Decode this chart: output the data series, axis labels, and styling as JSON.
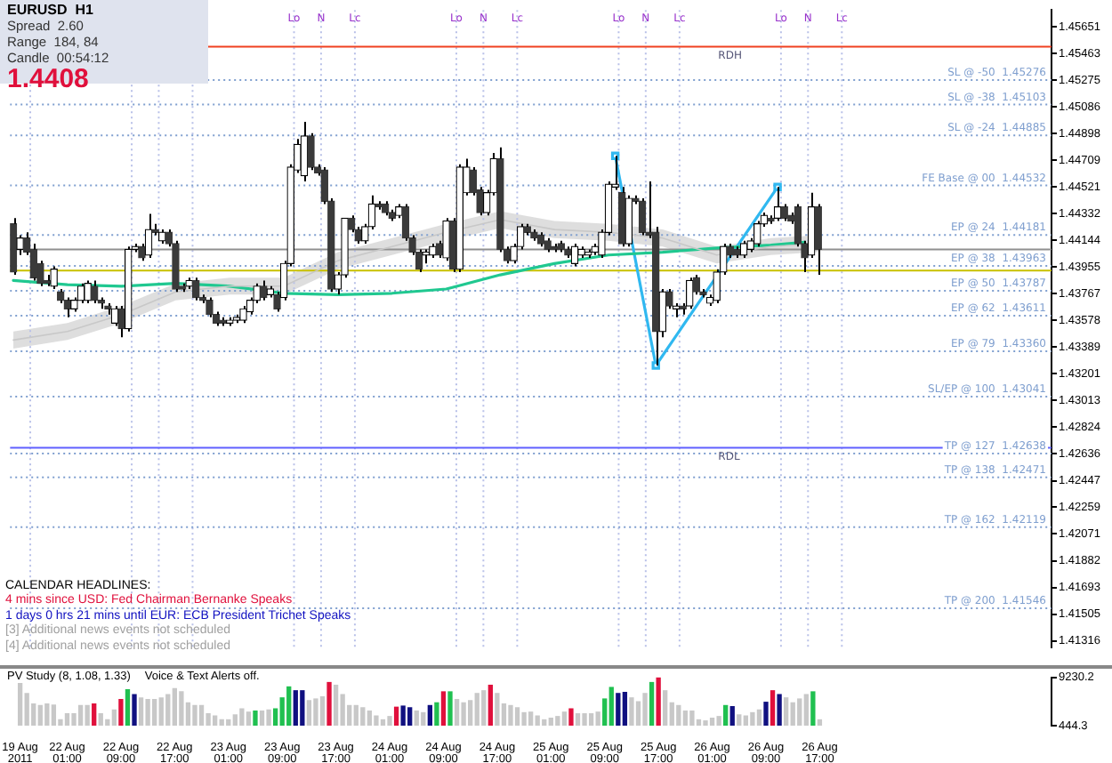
{
  "chart_data": [
    {
      "type": "candlestick",
      "tick_labels": "y",
      "legend": false,
      "grid": false,
      "categories": [
        null,
        null,
        null,
        null,
        null,
        null,
        null,
        null,
        null,
        null,
        null,
        null,
        null,
        null,
        null,
        null,
        null,
        null,
        null,
        null,
        null,
        null,
        null,
        null,
        null,
        null,
        null,
        null,
        null,
        null,
        null,
        null,
        null,
        null,
        null,
        null,
        null,
        null,
        null,
        null,
        null,
        null,
        null,
        null,
        null,
        null,
        null,
        null,
        null,
        null,
        null,
        null,
        null,
        null,
        null,
        null,
        null,
        null,
        null,
        null,
        null,
        null,
        null,
        null,
        null,
        null,
        null,
        null,
        null,
        null,
        null,
        null,
        null,
        null,
        null,
        null,
        null,
        null,
        null,
        null,
        null,
        null,
        null,
        null,
        null,
        null,
        null,
        null,
        null,
        null,
        null,
        null,
        null,
        null,
        null,
        null,
        null,
        null,
        null,
        null,
        null,
        null,
        null,
        null,
        null,
        null,
        null,
        null,
        null,
        null,
        null,
        null,
        null,
        null,
        null,
        null,
        null,
        null,
        null,
        null,
        null,
        null,
        null,
        null,
        null,
        null,
        null,
        null,
        null,
        null,
        null,
        null,
        null,
        null,
        null,
        null,
        null,
        null,
        null,
        null,
        null,
        null,
        null,
        null,
        null,
        null,
        null,
        null,
        null,
        null,
        null,
        null,
        null,
        null
      ],
      "ohlc": [
        [
          1.4426,
          1.443,
          1.439,
          1.4392
        ],
        [
          1.4408,
          1.4418,
          1.4404,
          1.4416
        ],
        [
          1.4416,
          1.442,
          1.4404,
          1.4406
        ],
        [
          1.4408,
          1.4412,
          1.4386,
          1.4388
        ],
        [
          1.4398,
          1.44,
          1.4382,
          1.4384
        ],
        [
          1.4386,
          1.439,
          1.4382,
          1.4384
        ],
        [
          1.4382,
          1.4396,
          1.438,
          1.4394
        ],
        [
          1.4378,
          1.438,
          1.437,
          1.4372
        ],
        [
          1.4372,
          1.4374,
          1.436,
          1.4366
        ],
        [
          1.4366,
          1.4374,
          1.4364,
          1.4372
        ],
        [
          1.4372,
          1.4384,
          1.437,
          1.4382
        ],
        [
          1.4372,
          1.4386,
          1.437,
          1.4384
        ],
        [
          1.4382,
          1.4386,
          1.437,
          1.4372
        ],
        [
          1.4372,
          1.4374,
          1.4366,
          1.437
        ],
        [
          1.4368,
          1.437,
          1.4362,
          1.4366
        ],
        [
          1.4356,
          1.4368,
          1.4354,
          1.4366
        ],
        [
          1.4366,
          1.4368,
          1.4346,
          1.4352
        ],
        [
          1.4352,
          1.441,
          1.435,
          1.4408
        ],
        [
          1.4408,
          1.4412,
          1.4406,
          1.441
        ],
        [
          1.441,
          1.4412,
          1.44,
          1.4402
        ],
        [
          1.4404,
          1.4433,
          1.4402,
          1.4422
        ],
        [
          1.4422,
          1.4426,
          1.4418,
          1.442
        ],
        [
          1.4414,
          1.4422,
          1.4412,
          1.442
        ],
        [
          1.442,
          1.4422,
          1.441,
          1.4412
        ],
        [
          1.4412,
          1.4414,
          1.4378,
          1.438
        ],
        [
          1.4382,
          1.4384,
          1.4378,
          1.438
        ],
        [
          1.4382,
          1.4388,
          1.438,
          1.4386
        ],
        [
          1.4386,
          1.4388,
          1.4372,
          1.4374
        ],
        [
          1.4374,
          1.4376,
          1.437,
          1.4372
        ],
        [
          1.4372,
          1.4374,
          1.436,
          1.4362
        ],
        [
          1.4362,
          1.4364,
          1.4354,
          1.4356
        ],
        [
          1.4358,
          1.436,
          1.4354,
          1.4356
        ],
        [
          1.4356,
          1.436,
          1.4354,
          1.4358
        ],
        [
          1.4358,
          1.4362,
          1.4356,
          1.436
        ],
        [
          1.4358,
          1.4368,
          1.4356,
          1.4366
        ],
        [
          1.4364,
          1.4374,
          1.4362,
          1.4372
        ],
        [
          1.4372,
          1.4384,
          1.437,
          1.4382
        ],
        [
          1.4382,
          1.4386,
          1.4372,
          1.4374
        ],
        [
          1.4376,
          1.4382,
          1.4374,
          1.438
        ],
        [
          1.4376,
          1.4378,
          1.4364,
          1.4366
        ],
        [
          1.4374,
          1.44,
          1.4372,
          1.4398
        ],
        [
          1.4398,
          1.4468,
          1.4396,
          1.4466
        ],
        [
          1.4464,
          1.4486,
          1.4462,
          1.4482
        ],
        [
          1.446,
          1.4498,
          1.4456,
          1.4488
        ],
        [
          1.4488,
          1.449,
          1.4464,
          1.4466
        ],
        [
          1.4466,
          1.4468,
          1.446,
          1.4462
        ],
        [
          1.4464,
          1.4466,
          1.444,
          1.4442
        ],
        [
          1.4442,
          1.4444,
          1.4378,
          1.438
        ],
        [
          1.438,
          1.4392,
          1.4376,
          1.439
        ],
        [
          1.439,
          1.443,
          1.4388,
          1.443
        ],
        [
          1.443,
          1.4432,
          1.442,
          1.4422
        ],
        [
          1.4422,
          1.4424,
          1.4412,
          1.4414
        ],
        [
          1.4414,
          1.4426,
          1.4412,
          1.4424
        ],
        [
          1.4424,
          1.4446,
          1.4422,
          1.444
        ],
        [
          1.444,
          1.4442,
          1.4436,
          1.4438
        ],
        [
          1.444,
          1.4442,
          1.4432,
          1.4434
        ],
        [
          1.4434,
          1.4436,
          1.4428,
          1.443
        ],
        [
          1.4432,
          1.444,
          1.443,
          1.4438
        ],
        [
          1.4438,
          1.444,
          1.4414,
          1.4416
        ],
        [
          1.4416,
          1.4418,
          1.4404,
          1.4406
        ],
        [
          1.4406,
          1.4408,
          1.4392,
          1.4394
        ],
        [
          1.4404,
          1.4408,
          1.4398,
          1.4406
        ],
        [
          1.4404,
          1.4412,
          1.4402,
          1.441
        ],
        [
          1.4412,
          1.4414,
          1.4402,
          1.4404
        ],
        [
          1.4402,
          1.443,
          1.44,
          1.4428
        ],
        [
          1.4428,
          1.443,
          1.4392,
          1.4394
        ],
        [
          1.4394,
          1.4468,
          1.4392,
          1.4466
        ],
        [
          1.4448,
          1.4472,
          1.4446,
          1.4466
        ],
        [
          1.4464,
          1.4466,
          1.4446,
          1.4448
        ],
        [
          1.445,
          1.4452,
          1.4432,
          1.4434
        ],
        [
          1.4434,
          1.445,
          1.4432,
          1.4448
        ],
        [
          1.4448,
          1.4476,
          1.4446,
          1.4472
        ],
        [
          1.4472,
          1.448,
          1.4406,
          1.4408
        ],
        [
          1.4408,
          1.441,
          1.4398,
          1.44
        ],
        [
          1.44,
          1.4412,
          1.4398,
          1.441
        ],
        [
          1.441,
          1.4426,
          1.4408,
          1.4424
        ],
        [
          1.4424,
          1.4426,
          1.4418,
          1.442
        ],
        [
          1.442,
          1.4422,
          1.4414,
          1.4416
        ],
        [
          1.4418,
          1.442,
          1.441,
          1.4412
        ],
        [
          1.4414,
          1.4416,
          1.4406,
          1.4408
        ],
        [
          1.441,
          1.4412,
          1.4406,
          1.4408
        ],
        [
          1.4412,
          1.4414,
          1.4406,
          1.4408
        ],
        [
          1.4408,
          1.441,
          1.4402,
          1.4404
        ],
        [
          1.4398,
          1.4412,
          1.4396,
          1.441
        ],
        [
          1.4404,
          1.441,
          1.4402,
          1.4408
        ],
        [
          1.4404,
          1.4408,
          1.4402,
          1.4406
        ],
        [
          1.4406,
          1.4412,
          1.4404,
          1.441
        ],
        [
          1.4404,
          1.4422,
          1.4402,
          1.442
        ],
        [
          1.442,
          1.4456,
          1.4418,
          1.4454
        ],
        [
          1.4452,
          1.4474,
          1.445,
          1.4454
        ],
        [
          1.4448,
          1.4452,
          1.441,
          1.4412
        ],
        [
          1.4412,
          1.4446,
          1.441,
          1.4444
        ],
        [
          1.4444,
          1.4446,
          1.444,
          1.4442
        ],
        [
          1.4442,
          1.4444,
          1.4418,
          1.442
        ],
        [
          1.442,
          1.4456,
          1.4416,
          1.4418
        ],
        [
          1.442,
          1.4424,
          1.4326,
          1.435
        ],
        [
          1.435,
          1.438,
          1.4346,
          1.4378
        ],
        [
          1.4378,
          1.438,
          1.4366,
          1.4368
        ],
        [
          1.4366,
          1.437,
          1.436,
          1.4368
        ],
        [
          1.4368,
          1.437,
          1.4362,
          1.4366
        ],
        [
          1.4368,
          1.4388,
          1.4366,
          1.4386
        ],
        [
          1.4388,
          1.439,
          1.4376,
          1.4378
        ],
        [
          1.4378,
          1.438,
          1.4374,
          1.4376
        ],
        [
          1.437,
          1.4376,
          1.4368,
          1.4374
        ],
        [
          1.4372,
          1.4394,
          1.437,
          1.4392
        ],
        [
          1.4392,
          1.4412,
          1.439,
          1.441
        ],
        [
          1.441,
          1.4412,
          1.4402,
          1.4404
        ],
        [
          1.4408,
          1.441,
          1.4402,
          1.4404
        ],
        [
          1.4404,
          1.4414,
          1.4402,
          1.4412
        ],
        [
          1.4408,
          1.4416,
          1.4406,
          1.4414
        ],
        [
          1.4412,
          1.4428,
          1.441,
          1.4426
        ],
        [
          1.4426,
          1.4434,
          1.4424,
          1.4432
        ],
        [
          1.443,
          1.4432,
          1.4426,
          1.4428
        ],
        [
          1.443,
          1.4452,
          1.4428,
          1.4438
        ],
        [
          1.4438,
          1.444,
          1.4428,
          1.443
        ],
        [
          1.4432,
          1.4434,
          1.4426,
          1.4428
        ],
        [
          1.4438,
          1.444,
          1.441,
          1.4412
        ],
        [
          1.4412,
          1.4414,
          1.4392,
          1.4402
        ],
        [
          1.4404,
          1.4448,
          1.4402,
          1.4438
        ],
        [
          1.4438,
          1.444,
          1.439,
          1.4408
        ],
        null,
        null,
        null,
        null,
        null,
        null,
        null,
        null,
        null,
        null,
        null,
        null,
        null,
        null,
        null,
        null,
        null,
        null,
        null,
        null,
        null,
        null,
        null,
        null,
        null,
        null,
        null,
        null,
        null,
        null,
        null,
        null,
        null,
        null
      ],
      "series": [
        {
          "type": "line",
          "color": "#c8c8c8",
          "values": [
            1.4344,
            null,
            null,
            null,
            null,
            null,
            null,
            null,
            1.435,
            null,
            null,
            null,
            null,
            null,
            null,
            null,
            1.4362,
            null,
            null,
            null,
            null,
            null,
            null,
            null,
            1.4378,
            null,
            null,
            null,
            null,
            null,
            null,
            null,
            1.4382,
            null,
            null,
            null,
            null,
            null,
            null,
            null,
            1.4382,
            null,
            null,
            null,
            null,
            null,
            null,
            null,
            1.44,
            null,
            null,
            null,
            null,
            null,
            null,
            null,
            1.441,
            null,
            null,
            null,
            null,
            null,
            null,
            null,
            1.442,
            null,
            null,
            null,
            null,
            null,
            null,
            null,
            1.4429,
            null,
            null,
            null,
            null,
            null,
            null,
            null,
            1.4422,
            null,
            null,
            null,
            null,
            null,
            null,
            null,
            1.442,
            null,
            null,
            null,
            null,
            null,
            null,
            null,
            1.4416,
            null,
            null,
            null,
            null,
            null,
            null,
            null,
            1.4404,
            null,
            null,
            null,
            null,
            null,
            null,
            null,
            1.441,
            null,
            null,
            null,
            null,
            null,
            null,
            1.4412,
            null,
            null,
            null,
            null,
            null,
            null,
            null,
            null,
            null,
            null,
            null,
            null,
            null,
            null,
            null,
            null,
            null,
            null,
            null,
            null,
            null,
            null,
            null,
            null,
            null,
            null,
            null,
            null,
            null,
            null,
            null,
            null,
            null,
            null
          ],
          "lower": [
            1.4338,
            null,
            null,
            null,
            null,
            null,
            null,
            null,
            1.4344,
            null,
            null,
            null,
            null,
            null,
            null,
            null,
            1.4356,
            null,
            null,
            null,
            null,
            null,
            null,
            null,
            1.4372,
            null,
            null,
            null,
            null,
            null,
            null,
            null,
            1.4376,
            null,
            null,
            null,
            null,
            null,
            null,
            null,
            1.4376,
            null,
            null,
            null,
            null,
            null,
            null,
            null,
            1.4394,
            null,
            null,
            null,
            null,
            null,
            null,
            null,
            1.4404,
            null,
            null,
            null,
            null,
            null,
            null,
            null,
            1.4414,
            null,
            null,
            null,
            null,
            null,
            null,
            null,
            1.4423,
            null,
            null,
            null,
            null,
            null,
            null,
            null,
            1.4416,
            null,
            null,
            null,
            null,
            null,
            null,
            null,
            1.4414,
            null,
            null,
            null,
            null,
            null,
            null,
            null,
            1.441,
            null,
            null,
            null,
            null,
            null,
            null,
            null,
            1.4398,
            null,
            null,
            null,
            null,
            null,
            null,
            null,
            1.4404,
            null,
            null,
            null,
            null,
            null,
            null,
            1.4406,
            null,
            null,
            null,
            null,
            null,
            null,
            null,
            null,
            null,
            null,
            null,
            null,
            null,
            null,
            null,
            null,
            null,
            null,
            null,
            null,
            null,
            null,
            null,
            null,
            null,
            null,
            null,
            null,
            null,
            null,
            null,
            null,
            null,
            null
          ],
          "upper": [
            1.435,
            null,
            null,
            null,
            null,
            null,
            null,
            null,
            1.4356,
            null,
            null,
            null,
            null,
            null,
            null,
            null,
            1.4368,
            null,
            null,
            null,
            null,
            null,
            null,
            null,
            1.4384,
            null,
            null,
            null,
            null,
            null,
            null,
            null,
            1.4388,
            null,
            null,
            null,
            null,
            null,
            null,
            null,
            1.4388,
            null,
            null,
            null,
            null,
            null,
            null,
            null,
            1.4406,
            null,
            null,
            null,
            null,
            null,
            null,
            null,
            1.4416,
            null,
            null,
            null,
            null,
            null,
            null,
            null,
            1.4426,
            null,
            null,
            null,
            null,
            null,
            null,
            null,
            1.4435,
            null,
            null,
            null,
            null,
            null,
            null,
            null,
            1.4428,
            null,
            null,
            null,
            null,
            null,
            null,
            null,
            1.4426,
            null,
            null,
            null,
            null,
            null,
            null,
            null,
            1.4422,
            null,
            null,
            null,
            null,
            null,
            null,
            null,
            1.441,
            null,
            null,
            null,
            null,
            null,
            null,
            null,
            1.4416,
            null,
            null,
            null,
            null,
            null,
            null,
            1.4418,
            null,
            null,
            null,
            null,
            null,
            null,
            null,
            null,
            null,
            null,
            null,
            null,
            null,
            null,
            null,
            null,
            null,
            null,
            null,
            null,
            null,
            null,
            null,
            null,
            null,
            null,
            null,
            null,
            null,
            null,
            null,
            null,
            null,
            null
          ]
        },
        {
          "type": "line",
          "color": "#20c890",
          "values": [
            1.4386,
            null,
            null,
            null,
            null,
            null,
            null,
            null,
            1.4383,
            null,
            null,
            null,
            null,
            null,
            null,
            null,
            1.4382,
            null,
            null,
            null,
            null,
            null,
            null,
            null,
            1.4384,
            null,
            null,
            null,
            null,
            null,
            null,
            null,
            1.4382,
            null,
            null,
            null,
            null,
            null,
            null,
            null,
            1.4377,
            null,
            null,
            null,
            null,
            null,
            null,
            null,
            1.4376,
            null,
            null,
            null,
            null,
            null,
            null,
            null,
            1.4377,
            null,
            null,
            null,
            null,
            null,
            null,
            null,
            1.438,
            null,
            null,
            null,
            null,
            null,
            null,
            null,
            1.439,
            null,
            null,
            null,
            null,
            null,
            null,
            null,
            1.4398,
            null,
            null,
            null,
            null,
            null,
            null,
            null,
            1.4404,
            null,
            null,
            null,
            null,
            null,
            null,
            null,
            1.4406,
            null,
            null,
            null,
            null,
            null,
            null,
            null,
            1.4409,
            null,
            null,
            null,
            null,
            null,
            null,
            null,
            1.4411,
            null,
            null,
            null,
            null,
            1.4413,
            null,
            null,
            null,
            null,
            null,
            null,
            null,
            null,
            null,
            null,
            null,
            null,
            null,
            null,
            null,
            null,
            null,
            null,
            null,
            null,
            null,
            null,
            null,
            null,
            null,
            null,
            null,
            null,
            null,
            null,
            null,
            null,
            null,
            null,
            null,
            null
          ]
        },
        {
          "type": "line",
          "color": "#30b8f0",
          "marker": "square",
          "values": [
            null,
            null,
            null,
            null,
            null,
            null,
            null,
            null,
            null,
            null,
            null,
            null,
            null,
            null,
            null,
            null,
            null,
            null,
            null,
            null,
            null,
            null,
            null,
            null,
            null,
            null,
            null,
            null,
            null,
            null,
            null,
            null,
            null,
            null,
            null,
            null,
            null,
            null,
            null,
            null,
            null,
            null,
            null,
            null,
            null,
            null,
            null,
            null,
            null,
            null,
            null,
            null,
            null,
            null,
            null,
            null,
            null,
            null,
            null,
            null,
            null,
            null,
            null,
            null,
            null,
            null,
            null,
            null,
            null,
            null,
            null,
            null,
            null,
            null,
            null,
            null,
            null,
            null,
            null,
            null,
            null,
            null,
            null,
            null,
            null,
            null,
            null,
            null,
            null,
            1.4474,
            null,
            null,
            null,
            null,
            null,
            1.4326,
            null,
            null,
            null,
            null,
            null,
            null,
            null,
            null,
            null,
            null,
            null,
            null,
            null,
            null,
            null,
            null,
            null,
            1.4452,
            null,
            null,
            null,
            null,
            null,
            null,
            null,
            null,
            null,
            null,
            null,
            null,
            null,
            null,
            null,
            null,
            null,
            null,
            null,
            null,
            null,
            null,
            null,
            null,
            null,
            null,
            null,
            null,
            null,
            null,
            null,
            null,
            null,
            null,
            null,
            null,
            null,
            null,
            null,
            null
          ]
        }
      ],
      "ylim": [
        1.4127,
        1.4577
      ],
      "yticks": [
        1.41316,
        1.41505,
        1.41693,
        1.41882,
        1.42071,
        1.42259,
        1.42447,
        1.42636,
        1.42824,
        1.43013,
        1.43201,
        1.43389,
        1.43578,
        1.43767,
        1.43955,
        1.44144,
        1.44332,
        1.44521,
        1.44709,
        1.44898,
        1.45086,
        1.45275,
        1.45463,
        1.45651
      ],
      "ref_lines": [
        {
          "axis": "y",
          "value": 1.4551,
          "label": "RDH",
          "color": "#f04020",
          "line_style": "solid"
        },
        {
          "axis": "y",
          "value": 1.4268,
          "label": "RDL",
          "color": "#6060ff",
          "line_style": "solid"
        },
        {
          "axis": "y",
          "value": 1.4393,
          "color": "#c8c000",
          "line_style": "solid"
        },
        {
          "axis": "y",
          "value": 1.4408,
          "color": "#909090",
          "line_style": "solid"
        },
        {
          "axis": "y",
          "value": 1.45276,
          "label": "SL @ -50  1.45276",
          "color": "#7f9fcf",
          "line_style": "dotted"
        },
        {
          "axis": "y",
          "value": 1.45103,
          "label": "SL @ -38  1.45103",
          "color": "#7f9fcf",
          "line_style": "dotted"
        },
        {
          "axis": "y",
          "value": 1.44885,
          "label": "SL @ -24  1.44885",
          "color": "#7f9fcf",
          "line_style": "dotted"
        },
        {
          "axis": "y",
          "value": 1.44532,
          "label": "FE Base @ 00  1.44532",
          "color": "#7f9fcf",
          "line_style": "dotted"
        },
        {
          "axis": "y",
          "value": 1.44181,
          "label": "EP @ 24  1.44181",
          "color": "#7f9fcf",
          "line_style": "dotted"
        },
        {
          "axis": "y",
          "value": 1.43963,
          "label": "EP @ 38  1.43963",
          "color": "#7f9fcf",
          "line_style": "dotted"
        },
        {
          "axis": "y",
          "value": 1.43787,
          "label": "EP @ 50  1.43787",
          "color": "#7f9fcf",
          "line_style": "dotted"
        },
        {
          "axis": "y",
          "value": 1.43611,
          "label": "EP @ 62  1.43611",
          "color": "#7f9fcf",
          "line_style": "dotted"
        },
        {
          "axis": "y",
          "value": 1.4336,
          "label": "EP @ 79  1.43360",
          "color": "#7f9fcf",
          "line_style": "dotted"
        },
        {
          "axis": "y",
          "value": 1.43041,
          "label": "SL/EP @ 100  1.43041",
          "color": "#7f9fcf",
          "line_style": "dotted"
        },
        {
          "axis": "y",
          "value": 1.42638,
          "label": "TP @ 127  1.42638",
          "color": "#7f9fcf",
          "line_style": "dotted"
        },
        {
          "axis": "y",
          "value": 1.42471,
          "label": "TP @ 138  1.42471",
          "color": "#7f9fcf",
          "line_style": "dotted"
        },
        {
          "axis": "y",
          "value": 1.42119,
          "label": "TP @ 162  1.42119",
          "color": "#7f9fcf",
          "line_style": "dotted"
        },
        {
          "axis": "y",
          "value": 1.41546,
          "label": "TP @ 200  1.41546",
          "color": "#7f9fcf",
          "line_style": "dotted"
        }
      ],
      "annotations": [
        "EURUSD  H1",
        "Spread  2.60",
        "Range  184, 84",
        "Candle  00:54:12",
        "1.4408",
        "CALENDAR HEADLINES:",
        "4 mins since USD: Fed Chairman Bernanke Speaks",
        "1 days 0 hrs 21 mins until EUR: ECB President Trichet Speaks",
        "[3] Additional news events not scheduled",
        "[4] Additional news events not scheduled",
        "Lo",
        "N",
        "Lc",
        "Lo",
        "N",
        "Lc",
        "Lo",
        "N",
        "Lc",
        "Lo",
        "N",
        "Lc"
      ]
    },
    {
      "type": "bar",
      "legend": false,
      "grid": false,
      "categories": [
        "19 Aug 2011",
        null,
        null,
        null,
        null,
        null,
        null,
        "22 Aug 01:00",
        null,
        null,
        null,
        null,
        null,
        null,
        null,
        "22 Aug 09:00",
        null,
        null,
        null,
        null,
        null,
        null,
        null,
        "22 Aug 17:00",
        null,
        null,
        null,
        null,
        null,
        null,
        null,
        "23 Aug 01:00",
        null,
        null,
        null,
        null,
        null,
        null,
        null,
        "23 Aug 09:00",
        null,
        null,
        null,
        null,
        null,
        null,
        null,
        "23 Aug 17:00",
        null,
        null,
        null,
        null,
        null,
        null,
        null,
        "24 Aug 01:00",
        null,
        null,
        null,
        null,
        null,
        null,
        null,
        "24 Aug 09:00",
        null,
        null,
        null,
        null,
        null,
        null,
        null,
        "24 Aug 17:00",
        null,
        null,
        null,
        null,
        null,
        null,
        null,
        "25 Aug 01:00",
        null,
        null,
        null,
        null,
        null,
        null,
        null,
        "25 Aug 09:00",
        null,
        null,
        null,
        null,
        null,
        null,
        null,
        "25 Aug 17:00",
        null,
        null,
        null,
        null,
        null,
        null,
        null,
        "26 Aug 01:00",
        null,
        null,
        null,
        null,
        null,
        null,
        null,
        "26 Aug 09:00",
        null,
        null,
        null,
        null,
        null,
        null,
        null,
        "26 Aug 17:00",
        null,
        null,
        null,
        null,
        null,
        null,
        null,
        null,
        null,
        null,
        null,
        null,
        null,
        null,
        null,
        null,
        null,
        null,
        null,
        null,
        null,
        null,
        null,
        null,
        null,
        null,
        null,
        null,
        null,
        null,
        null,
        null,
        null,
        null
      ],
      "values": [
        8100,
        6300,
        4400,
        4100,
        4400,
        4200,
        1500,
        2600,
        2600,
        4100,
        4100,
        4400,
        2600,
        1500,
        3300,
        5200,
        7000,
        6100,
        5500,
        5200,
        5200,
        5500,
        6100,
        7200,
        6600,
        4600,
        4100,
        4100,
        2600,
        2200,
        1500,
        1500,
        2400,
        3500,
        2900,
        3100,
        3100,
        3300,
        3500,
        5500,
        7500,
        6800,
        6800,
        5000,
        5300,
        5700,
        8300,
        7800,
        6100,
        4100,
        4100,
        3700,
        3100,
        2200,
        1500,
        2100,
        3800,
        4000,
        3700,
        3100,
        2800,
        4100,
        4600,
        6600,
        6600,
        5200,
        4600,
        5000,
        6300,
        6800,
        7800,
        6300,
        4400,
        4100,
        3700,
        2800,
        2900,
        2200,
        1500,
        1800,
        2100,
        2900,
        3500,
        2600,
        2600,
        2600,
        2900,
        5300,
        7400,
        6300,
        6500,
        5500,
        4800,
        6300,
        8300,
        9200,
        6800,
        4600,
        4100,
        3100,
        3100,
        1500,
        1300,
        1800,
        2100,
        4100,
        3900,
        2400,
        2200,
        2800,
        3300,
        4700,
        6800,
        6100,
        5500,
        4600,
        5300,
        6100,
        6600,
        1500,
        null,
        null,
        null,
        null,
        null,
        null,
        null,
        null,
        null,
        null,
        null,
        null,
        null,
        null,
        null,
        null,
        null,
        null,
        null,
        null,
        null,
        null,
        null,
        null,
        null,
        null,
        null,
        null,
        null,
        null,
        null,
        null,
        null,
        null
      ],
      "colors": [
        "#c8c8c8",
        "#c8c8c8",
        "#c8c8c8",
        "#c8c8c8",
        "#c8c8c8",
        "#c8c8c8",
        "#c8c8c8",
        "#c8c8c8",
        "#c8c8c8",
        "#c8c8c8",
        "#c8c8c8",
        "#e0103c",
        "#c8c8c8",
        "#c8c8c8",
        "#c8c8c8",
        "#e0103c",
        "#20c050",
        "#101080",
        "#c8c8c8",
        "#c8c8c8",
        "#c8c8c8",
        "#c8c8c8",
        "#c8c8c8",
        "#c8c8c8",
        "#c8c8c8",
        "#c8c8c8",
        "#c8c8c8",
        "#c8c8c8",
        "#c8c8c8",
        "#c8c8c8",
        "#c8c8c8",
        "#c8c8c8",
        "#c8c8c8",
        "#c8c8c8",
        "#c8c8c8",
        "#20c050",
        "#c8c8c8",
        "#c8c8c8",
        "#20c050",
        "#20c050",
        "#20c050",
        "#101080",
        "#101080",
        "#c8c8c8",
        "#c8c8c8",
        "#c8c8c8",
        "#e0103c",
        "#c8c8c8",
        "#c8c8c8",
        "#c8c8c8",
        "#c8c8c8",
        "#c8c8c8",
        "#c8c8c8",
        "#c8c8c8",
        "#c8c8c8",
        "#c8c8c8",
        "#e0103c",
        "#101080",
        "#101080",
        "#c8c8c8",
        "#c8c8c8",
        "#101080",
        "#20c050",
        "#e0103c",
        "#20c050",
        "#c8c8c8",
        "#c8c8c8",
        "#c8c8c8",
        "#c8c8c8",
        "#c8c8c8",
        "#e0103c",
        "#c8c8c8",
        "#c8c8c8",
        "#c8c8c8",
        "#c8c8c8",
        "#c8c8c8",
        "#c8c8c8",
        "#c8c8c8",
        "#c8c8c8",
        "#c8c8c8",
        "#c8c8c8",
        "#c8c8c8",
        "#e0103c",
        "#c8c8c8",
        "#c8c8c8",
        "#c8c8c8",
        "#c8c8c8",
        "#20c050",
        "#20c050",
        "#101080",
        "#101080",
        "#c8c8c8",
        "#c8c8c8",
        "#c8c8c8",
        "#20c050",
        "#e0103c",
        "#c8c8c8",
        "#c8c8c8",
        "#c8c8c8",
        "#c8c8c8",
        "#c8c8c8",
        "#c8c8c8",
        "#c8c8c8",
        "#c8c8c8",
        "#c8c8c8",
        "#20c050",
        "#101080",
        "#c8c8c8",
        "#c8c8c8",
        "#c8c8c8",
        "#c8c8c8",
        "#101080",
        "#e0103c",
        "#101080",
        "#c8c8c8",
        "#c8c8c8",
        "#c8c8c8",
        "#c8c8c8",
        "#20c050",
        "#c8c8c8",
        null,
        null,
        null,
        null,
        null,
        null,
        null,
        null,
        null,
        null,
        null,
        null,
        null,
        null,
        null,
        null,
        null,
        null,
        null,
        null,
        null,
        null,
        null,
        null,
        null,
        null,
        null,
        null,
        null,
        null,
        null,
        null,
        null,
        null
      ],
      "ylim": [
        444.3,
        9230.2
      ],
      "yticks": [
        444.3,
        9230.2
      ],
      "annotations": [
        "PV Study (8, 1.08, 1.33)",
        "Voice & Text Alerts off."
      ]
    }
  ]
}
